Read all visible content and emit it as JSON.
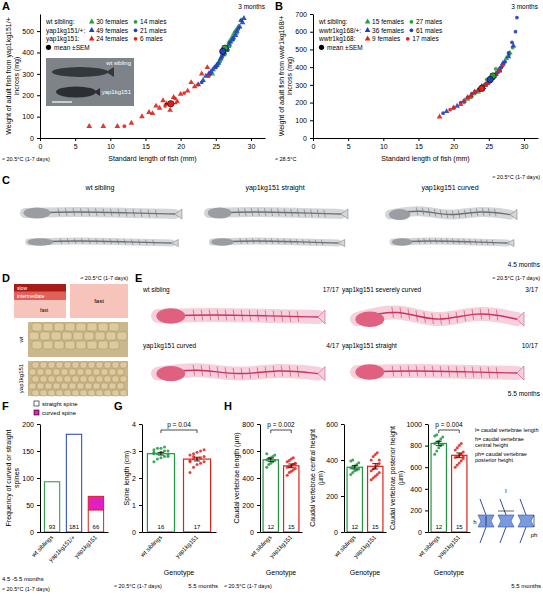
{
  "chart_data": [
    {
      "panel": "A",
      "type": "scatter",
      "x_label": "Standard length of fish (mm)",
      "y_label": "Weight of adult fish from yap1kg151/+ incross (mg)",
      "age": "3 months",
      "note": "≈ 20.5°C (1-7 days)",
      "xlim": [
        0,
        32
      ],
      "xticks": [
        0,
        5,
        10,
        15,
        20,
        25,
        30
      ],
      "ylim": [
        0,
        580
      ],
      "yticks": [
        0,
        100,
        200,
        300,
        400,
        500
      ],
      "legend": "upper left",
      "legend_titles": [
        "wt sibling:",
        "yap1kg151/+:",
        "yap1kg151:"
      ],
      "inset_labels": [
        "wt sibling",
        "yap1kg151"
      ],
      "series": [
        {
          "name": "30 females",
          "color": "#22a03c",
          "marker": "triangle",
          "x": [
            24.5,
            25.2,
            25.8,
            26.1,
            26.5,
            26.9,
            27.3,
            27.8,
            28.2,
            28.6,
            25.5,
            26.8,
            27.6,
            24.8
          ],
          "values": [
            300,
            340,
            380,
            400,
            420,
            450,
            470,
            500,
            520,
            550,
            360,
            430,
            490,
            330
          ]
        },
        {
          "name": "14 males",
          "color": "#22a03c",
          "marker": "circle",
          "x": [
            24.0,
            25.0,
            25.6,
            26.3,
            27.0,
            27.5,
            28.0,
            26.0,
            25.3
          ],
          "values": [
            290,
            330,
            360,
            390,
            430,
            460,
            490,
            410,
            345
          ]
        },
        {
          "name": "49 females",
          "color": "#2040c0",
          "marker": "triangle",
          "x": [
            22.5,
            23.2,
            24.0,
            24.6,
            25.1,
            25.7,
            26.2,
            26.6,
            27.1,
            27.5,
            28.0,
            28.4,
            28.8,
            29.0,
            25.4,
            26.9,
            27.8,
            24.3,
            23.6,
            26.0
          ],
          "values": [
            250,
            270,
            300,
            320,
            340,
            370,
            400,
            420,
            450,
            470,
            500,
            520,
            540,
            560,
            350,
            440,
            480,
            310,
            290,
            390
          ]
        },
        {
          "name": "21 males",
          "color": "#2040c0",
          "marker": "circle",
          "x": [
            23.0,
            24.2,
            25.0,
            25.9,
            26.7,
            27.4,
            28.2,
            28.6
          ],
          "values": [
            260,
            300,
            330,
            380,
            410,
            460,
            510,
            550
          ]
        },
        {
          "name": "24 females",
          "color": "#e0201a",
          "marker": "triangle",
          "x": [
            7.0,
            9.0,
            11.0,
            13.0,
            14.5,
            15.5,
            16.0,
            17.0,
            17.5,
            18.0,
            19.0,
            19.5,
            20.0,
            21.0,
            22.0,
            23.0,
            23.8,
            16.5,
            18.5,
            21.5
          ],
          "values": [
            55,
            55,
            55,
            70,
            100,
            120,
            115,
            140,
            175,
            160,
            190,
            170,
            205,
            220,
            240,
            300,
            330,
            150,
            130,
            260
          ]
        },
        {
          "name": "6 males",
          "color": "#e0201a",
          "marker": "circle",
          "x": [
            12.0,
            17.8,
            19.2,
            20.5,
            22.5,
            24.0
          ],
          "values": [
            55,
            150,
            185,
            210,
            250,
            290
          ]
        },
        {
          "name": "mean ±SEM",
          "color": "#000000",
          "marker": "circle",
          "type": "mean",
          "colors": [
            "#22a03c",
            "#2040c0",
            "#e0201a"
          ],
          "x": [
            26.3,
            26.0,
            18.6
          ],
          "x_error": [
            0.5,
            0.4,
            0.9
          ],
          "values": [
            420,
            405,
            160
          ],
          "error": [
            15,
            12,
            14
          ]
        }
      ]
    },
    {
      "panel": "B",
      "type": "scatter",
      "x_label": "Standard length of fish (mm)",
      "y_label": "Weight of adult fish from wwtr1kg168/+ incross (mg)",
      "age": "3 months",
      "note": "≈ 28.5°C",
      "xlim": [
        0,
        32
      ],
      "xticks": [
        0,
        5,
        10,
        15,
        20,
        25,
        30
      ],
      "ylim": [
        0,
        700
      ],
      "yticks": [
        0,
        100,
        200,
        300,
        400,
        500,
        600,
        700
      ],
      "legend": "upper left",
      "legend_titles": [
        "wt sibling:",
        "wwtr1kg168/+:",
        "wwtr1kg168:"
      ],
      "series": [
        {
          "name": "15 females",
          "color": "#22a03c",
          "marker": "triangle",
          "x": [
            22.0,
            23.5,
            24.5,
            25.0,
            25.5,
            26.0,
            26.5,
            27.0,
            27.5,
            28.0,
            24.0,
            25.8
          ],
          "values": [
            220,
            260,
            300,
            320,
            340,
            360,
            380,
            420,
            450,
            480,
            290,
            350
          ]
        },
        {
          "name": "27 males",
          "color": "#22a03c",
          "marker": "circle",
          "x": [
            21.5,
            23.0,
            24.2,
            25.0,
            25.6,
            26.2,
            26.8,
            27.3,
            27.9,
            28.4,
            24.7,
            26.0,
            22.5
          ],
          "values": [
            200,
            250,
            290,
            310,
            340,
            370,
            400,
            430,
            470,
            510,
            330,
            390,
            230
          ]
        },
        {
          "name": "36 females",
          "color": "#2040c0",
          "marker": "triangle",
          "x": [
            19.0,
            20.5,
            21.5,
            22.5,
            23.5,
            24.5,
            25.0,
            25.5,
            26.0,
            26.5,
            27.0,
            27.8,
            28.5,
            23.0,
            24.0
          ],
          "values": [
            150,
            180,
            210,
            240,
            270,
            300,
            320,
            340,
            360,
            390,
            420,
            460,
            520,
            260,
            290
          ]
        },
        {
          "name": "61 males",
          "color": "#2040c0",
          "marker": "circle",
          "x": [
            18.5,
            20.0,
            21.0,
            22.0,
            23.0,
            24.0,
            24.8,
            25.3,
            25.8,
            26.3,
            26.8,
            27.3,
            27.8,
            28.3,
            28.8,
            29.0,
            24.4,
            25.6,
            26.6,
            22.6
          ],
          "values": [
            140,
            170,
            200,
            230,
            260,
            290,
            310,
            330,
            350,
            370,
            400,
            430,
            480,
            540,
            600,
            680,
            300,
            345,
            380,
            250
          ]
        },
        {
          "name": "9 females",
          "color": "#e0201a",
          "marker": "triangle",
          "x": [
            18.0,
            21.0,
            23.0,
            24.5,
            25.5,
            26.5,
            20.0,
            22.0,
            25.0
          ],
          "values": [
            120,
            190,
            260,
            300,
            340,
            380,
            170,
            230,
            320
          ]
        },
        {
          "name": "17 males",
          "color": "#e0201a",
          "marker": "circle",
          "x": [
            19.5,
            22.5,
            23.5,
            24.0,
            25.0,
            26.0,
            27.0,
            21.5
          ],
          "values": [
            160,
            240,
            270,
            290,
            310,
            360,
            410,
            210
          ]
        },
        {
          "name": "mean ±SEM",
          "color": "#000000",
          "marker": "circle",
          "type": "mean",
          "colors": [
            "#22a03c",
            "#2040c0",
            "#e0201a"
          ],
          "x": [
            25.6,
            25.2,
            24.0
          ],
          "x_error": [
            0.3,
            0.3,
            0.6
          ],
          "values": [
            350,
            330,
            280
          ],
          "error": [
            10,
            8,
            15
          ]
        }
      ]
    },
    {
      "panel": "F",
      "type": "bar",
      "stacked": true,
      "y_label": "Frequency of curved or straight spines",
      "age": "4.5 -5.5 months",
      "note": "≈ 20.5°C (1-7 days)",
      "categories": [
        "wt siblings",
        "yap1kg151/+",
        "yap1kg151"
      ],
      "colors": [
        "#1a9a3a",
        "#2040c0",
        "#e0201a"
      ],
      "ylim": [
        0,
        200
      ],
      "yticks": [
        0,
        50,
        100,
        150,
        200
      ],
      "legend": "top",
      "series": [
        {
          "name": "straight spine",
          "color": "#ffffff",
          "values": [
            93,
            181,
            41
          ]
        },
        {
          "name": "curved spine",
          "color": "#e020c0",
          "values": [
            0,
            0,
            25
          ]
        }
      ],
      "totals": [
        93,
        181,
        66
      ]
    },
    {
      "panel": "G",
      "type": "bar",
      "y_label": "Spine length (cm)",
      "x_label": "Genotype",
      "age": "5.5 months",
      "note": "≈ 20.5°C (1-7 days)",
      "categories": [
        "wt siblings",
        "yap1kg151"
      ],
      "colors": [
        "#1a9a3a",
        "#e0201a"
      ],
      "ylim": [
        0,
        4
      ],
      "yticks": [
        0,
        1,
        2,
        3,
        4
      ],
      "values": [
        2.9,
        2.7
      ],
      "error": [
        0.05,
        0.07
      ],
      "n": [
        16,
        17
      ],
      "p_value": "p = 0.04",
      "points": [
        [
          2.6,
          2.7,
          2.75,
          2.8,
          2.85,
          2.9,
          2.9,
          2.95,
          3.0,
          3.0,
          3.05,
          3.1,
          3.1,
          3.15,
          2.8,
          2.95
        ],
        [
          2.2,
          2.4,
          2.5,
          2.55,
          2.6,
          2.65,
          2.7,
          2.7,
          2.75,
          2.8,
          2.85,
          2.9,
          2.95,
          3.0,
          3.05,
          2.6,
          2.8
        ]
      ]
    },
    {
      "panel": "H",
      "type": "bar",
      "y_label": "Caudal vertebrae length (µm)",
      "x_label": "Genotype",
      "categories": [
        "wt siblings",
        "yap1kg151"
      ],
      "colors": [
        "#1a9a3a",
        "#e0201a"
      ],
      "ylim": [
        0,
        800
      ],
      "yticks": [
        0,
        200,
        400,
        600,
        800
      ],
      "values": [
        535,
        490
      ],
      "error": [
        12,
        14
      ],
      "n": [
        12,
        15
      ],
      "p_value": "p = 0.002",
      "points": [
        [
          480,
          500,
          510,
          520,
          530,
          535,
          540,
          550,
          560,
          570,
          580,
          545
        ],
        [
          420,
          440,
          450,
          460,
          470,
          480,
          485,
          490,
          500,
          510,
          520,
          530,
          540,
          550,
          505
        ]
      ]
    },
    {
      "type": "bar",
      "y_label": "Caudal vertebrae central height (µm)",
      "x_label": "Genotype",
      "categories": [
        "wt siblings",
        "yap1kg151"
      ],
      "colors": [
        "#1a9a3a",
        "#e0201a"
      ],
      "ylim": [
        0,
        600
      ],
      "yticks": [
        0,
        200,
        400,
        600
      ],
      "values": [
        360,
        365
      ],
      "error": [
        10,
        15
      ],
      "n": [
        12,
        15
      ],
      "points": [
        [
          320,
          330,
          340,
          345,
          350,
          355,
          360,
          365,
          375,
          385,
          395,
          400
        ],
        [
          290,
          300,
          310,
          320,
          330,
          340,
          350,
          360,
          370,
          380,
          400,
          420,
          430,
          440,
          400
        ]
      ]
    },
    {
      "type": "bar",
      "y_label": "Caudal vertebrae posterior height (µm)",
      "x_label": "Genotype",
      "categories": [
        "wt siblings",
        "yap1kg151"
      ],
      "colors": [
        "#1a9a3a",
        "#e0201a"
      ],
      "ylim": [
        0,
        1000
      ],
      "yticks": [
        0,
        200,
        400,
        600,
        800,
        1000
      ],
      "values": [
        820,
        710
      ],
      "error": [
        20,
        22
      ],
      "n": [
        12,
        15
      ],
      "p_value": "p = 0.004",
      "points": [
        [
          720,
          750,
          780,
          800,
          810,
          820,
          830,
          840,
          860,
          880,
          890,
          900
        ],
        [
          600,
          620,
          640,
          660,
          680,
          690,
          700,
          710,
          720,
          740,
          760,
          780,
          800,
          820,
          700
        ]
      ]
    }
  ],
  "images": {
    "C": {
      "panel": "C",
      "labels": [
        "wt sibling",
        "yap1kg151 straight",
        "yap1kg151 curved"
      ],
      "age": "4.5 months",
      "note": "≈ 20.5°C (1-7 days)"
    },
    "D": {
      "panel": "D",
      "labels": [
        "slow",
        "intermediate",
        "fast",
        "fast"
      ],
      "rows": [
        "wt",
        "yap1kg151"
      ],
      "note": "≈ 20.5°C (1-7 days)"
    },
    "E": {
      "panel": "E",
      "items": [
        {
          "label": "wt sibling",
          "count": "17/17"
        },
        {
          "label": "yap1kg151 severely curved",
          "count": "3/17"
        },
        {
          "label": "yap1kg151 curved",
          "count": "4/17"
        },
        {
          "label": "yap1kg151 straight",
          "count": "10/17"
        }
      ],
      "age": "5.5 months",
      "note": "≈ 20.5°C (1-7 days)"
    }
  },
  "schematic": {
    "lines": [
      "l= caudal vertebrae length",
      "h= caudal vertebrae central height",
      "ph= caudal vertebrae posterior height"
    ],
    "labels": [
      "l",
      "h",
      "ph"
    ],
    "age": "5.5 months",
    "note": "≈ 20.5°C (1-7 days)"
  }
}
